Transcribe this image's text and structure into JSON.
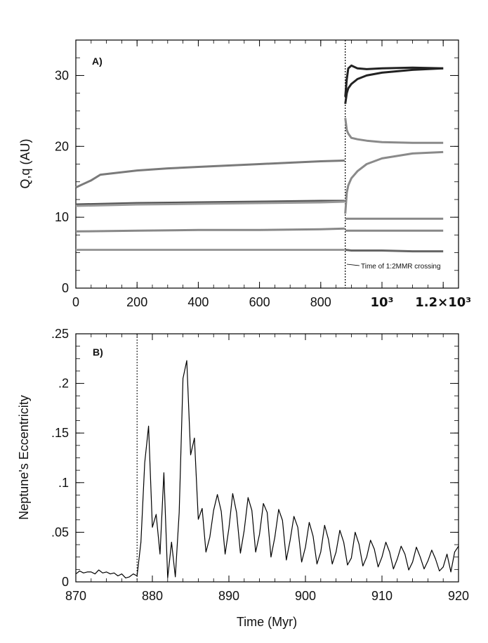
{
  "chart_data": [
    {
      "type": "line",
      "panel_label": "A)",
      "xlabel": "",
      "ylabel": "Q,q (AU)",
      "xlim": [
        0,
        1250
      ],
      "ylim": [
        0,
        35
      ],
      "x_tick_labels": [
        {
          "value": 0,
          "label": "0"
        },
        {
          "value": 200,
          "label": "200"
        },
        {
          "value": 400,
          "label": "400"
        },
        {
          "value": 600,
          "label": "600"
        },
        {
          "value": 800,
          "label": "800"
        },
        {
          "value": 1000,
          "label": "10³"
        },
        {
          "value": 1200,
          "label": "1.2×10³"
        }
      ],
      "y_tick_labels": [
        {
          "value": 0,
          "label": "0"
        },
        {
          "value": 10,
          "label": "10"
        },
        {
          "value": 20,
          "label": "20"
        },
        {
          "value": 30,
          "label": "30"
        }
      ],
      "vline": {
        "x": 880,
        "style": "dotted"
      },
      "annotation": "Time of 1:2MMR crossing",
      "series": [
        {
          "color": "#7a7a7a",
          "x": [
            0,
            20,
            50,
            80,
            100,
            200,
            300,
            400,
            500,
            600,
            700,
            800,
            878
          ],
          "y": [
            14.2,
            14.6,
            15.2,
            16.0,
            16.1,
            16.6,
            16.9,
            17.1,
            17.3,
            17.5,
            17.7,
            17.9,
            18.0
          ]
        },
        {
          "color": "#8a8a8a",
          "x": [
            880,
            885,
            890,
            900,
            920,
            950,
            1000,
            1100,
            1200
          ],
          "y": [
            24.0,
            22.3,
            21.8,
            21.2,
            21.0,
            20.8,
            20.6,
            20.5,
            20.5
          ]
        },
        {
          "color": "#8a8a8a",
          "x": [
            880,
            885,
            890,
            900,
            920,
            950,
            1000,
            1100,
            1200
          ],
          "y": [
            10.5,
            13.5,
            14.5,
            15.5,
            16.5,
            17.5,
            18.3,
            19.0,
            19.2
          ]
        },
        {
          "color": "#222222",
          "x": [
            880,
            885,
            890,
            900,
            920,
            950,
            1000,
            1100,
            1200
          ],
          "y": [
            27.0,
            29.5,
            31.0,
            31.4,
            31.0,
            30.9,
            31.0,
            31.1,
            31.0
          ]
        },
        {
          "color": "#222222",
          "x": [
            880,
            885,
            890,
            900,
            920,
            950,
            1000,
            1100,
            1200
          ],
          "y": [
            26.0,
            27.5,
            28.2,
            28.8,
            29.5,
            30.0,
            30.4,
            30.8,
            31.0
          ]
        },
        {
          "color": "#555555",
          "x": [
            0,
            200,
            400,
            600,
            800,
            878
          ],
          "y": [
            11.8,
            12.0,
            12.1,
            12.2,
            12.3,
            12.3
          ]
        },
        {
          "color": "#999999",
          "x": [
            0,
            200,
            400,
            600,
            800,
            878
          ],
          "y": [
            11.6,
            11.8,
            11.9,
            12.0,
            12.1,
            12.2
          ]
        },
        {
          "color": "#888888",
          "x": [
            0,
            200,
            400,
            600,
            800,
            878
          ],
          "y": [
            8.0,
            8.1,
            8.2,
            8.2,
            8.3,
            8.4
          ]
        },
        {
          "color": "#999999",
          "x": [
            0,
            200,
            400,
            600,
            800,
            878
          ],
          "y": [
            5.4,
            5.4,
            5.4,
            5.4,
            5.4,
            5.4
          ]
        },
        {
          "color": "#888888",
          "x": [
            880,
            900,
            1000,
            1100,
            1200
          ],
          "y": [
            9.8,
            9.8,
            9.8,
            9.8,
            9.8
          ]
        },
        {
          "color": "#888888",
          "x": [
            880,
            900,
            1000,
            1100,
            1200
          ],
          "y": [
            8.1,
            8.1,
            8.1,
            8.1,
            8.1
          ]
        },
        {
          "color": "#666666",
          "x": [
            880,
            900,
            1000,
            1100,
            1200
          ],
          "y": [
            5.4,
            5.3,
            5.3,
            5.2,
            5.2
          ]
        }
      ]
    },
    {
      "type": "line",
      "panel_label": "B)",
      "xlabel": "Time (Myr)",
      "ylabel": "Neptune's Eccentricity",
      "xlim": [
        870,
        920
      ],
      "ylim": [
        0,
        0.25
      ],
      "x_tick_labels": [
        {
          "value": 870,
          "label": "870"
        },
        {
          "value": 880,
          "label": "880"
        },
        {
          "value": 890,
          "label": "890"
        },
        {
          "value": 900,
          "label": "900"
        },
        {
          "value": 910,
          "label": "910"
        },
        {
          "value": 920,
          "label": "920"
        }
      ],
      "y_tick_labels": [
        {
          "value": 0,
          "label": "0"
        },
        {
          "value": 0.05,
          "label": ".05"
        },
        {
          "value": 0.1,
          "label": ".1"
        },
        {
          "value": 0.15,
          "label": ".15"
        },
        {
          "value": 0.2,
          "label": ".2"
        },
        {
          "value": 0.25,
          "label": ".25"
        }
      ],
      "vline": {
        "x": 878,
        "style": "dotted"
      },
      "series": [
        {
          "color": "#000000",
          "x": [
            870,
            870.5,
            871,
            871.5,
            872,
            872.5,
            873,
            873.5,
            874,
            874.5,
            875,
            875.5,
            876,
            876.5,
            877,
            877.5,
            878,
            878.5,
            879,
            879.5,
            880,
            880.5,
            881,
            881.5,
            882,
            882.5,
            883,
            883.5,
            884,
            884.5,
            885,
            885.5,
            886,
            886.5,
            887,
            887.5,
            888,
            888.5,
            889,
            889.5,
            890,
            890.5,
            891,
            891.5,
            892,
            892.5,
            893,
            893.5,
            894,
            894.5,
            895,
            895.5,
            896,
            896.5,
            897,
            897.5,
            898,
            898.5,
            899,
            899.5,
            900,
            900.5,
            901,
            901.5,
            902,
            902.5,
            903,
            903.5,
            904,
            904.5,
            905,
            905.5,
            906,
            906.5,
            907,
            907.5,
            908,
            908.5,
            909,
            909.5,
            910,
            910.5,
            911,
            911.5,
            912,
            912.5,
            913,
            913.5,
            914,
            914.5,
            915,
            915.5,
            916,
            916.5,
            917,
            917.5,
            918,
            918.5,
            919,
            919.5,
            920
          ],
          "y": [
            0.008,
            0.011,
            0.009,
            0.01,
            0.01,
            0.008,
            0.012,
            0.009,
            0.01,
            0.008,
            0.009,
            0.006,
            0.008,
            0.004,
            0.005,
            0.008,
            0.006,
            0.04,
            0.12,
            0.157,
            0.055,
            0.068,
            0.028,
            0.11,
            0.004,
            0.04,
            0.005,
            0.07,
            0.205,
            0.223,
            0.128,
            0.145,
            0.063,
            0.074,
            0.03,
            0.045,
            0.072,
            0.088,
            0.071,
            0.028,
            0.054,
            0.089,
            0.07,
            0.029,
            0.052,
            0.085,
            0.072,
            0.03,
            0.048,
            0.079,
            0.07,
            0.025,
            0.045,
            0.073,
            0.062,
            0.022,
            0.042,
            0.066,
            0.055,
            0.02,
            0.035,
            0.06,
            0.046,
            0.018,
            0.03,
            0.057,
            0.043,
            0.018,
            0.03,
            0.052,
            0.04,
            0.017,
            0.024,
            0.05,
            0.038,
            0.016,
            0.025,
            0.042,
            0.033,
            0.015,
            0.025,
            0.04,
            0.03,
            0.013,
            0.023,
            0.036,
            0.028,
            0.012,
            0.02,
            0.035,
            0.025,
            0.013,
            0.021,
            0.032,
            0.023,
            0.011,
            0.015,
            0.028,
            0.01,
            0.03,
            0.036
          ]
        }
      ]
    }
  ]
}
